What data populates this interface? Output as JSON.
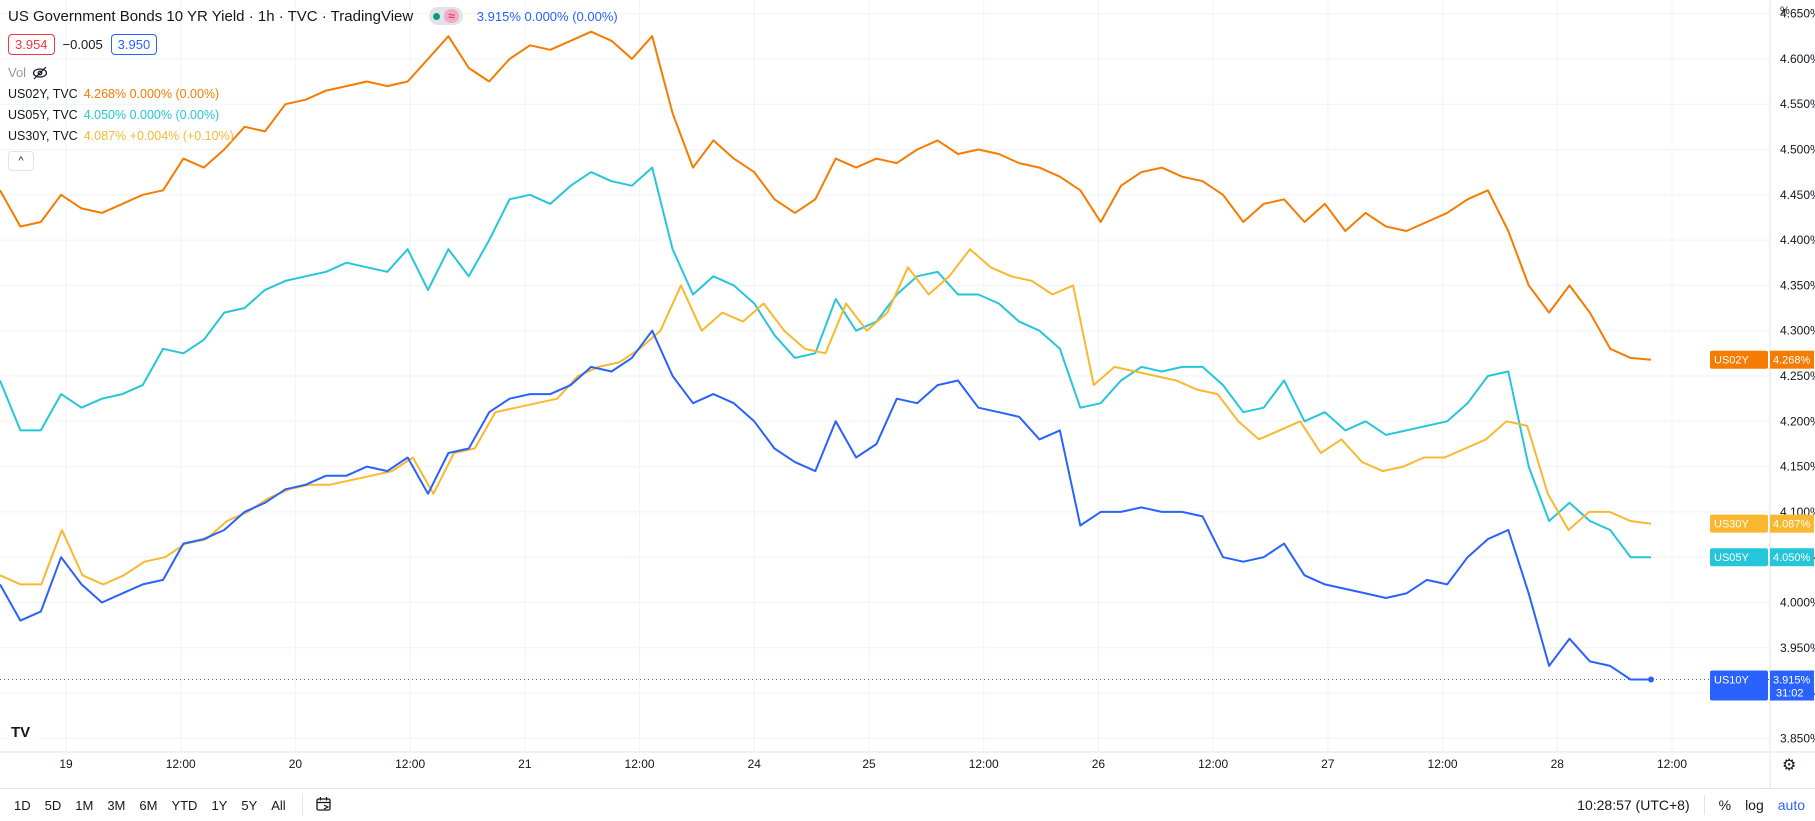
{
  "header": {
    "title": "US Government Bonds 10 YR Yield · 1h · TVC · TradingView",
    "main_quote": "3.915% 0.000% (0.00%)",
    "sell": "3.954",
    "spread": "−0.005",
    "buy": "3.950",
    "vol_label": "Vol"
  },
  "legend_series": [
    {
      "name": "US02Y, TVC",
      "value": "4.268% 0.000% (0.00%)",
      "color": "#f57c00"
    },
    {
      "name": "US05Y, TVC",
      "value": "4.050% 0.000% (0.00%)",
      "color": "#26c6da"
    },
    {
      "name": "US30Y, TVC",
      "value": "4.087% +0.004% (+0.10%)",
      "color": "#f9b82f"
    }
  ],
  "chart_data": {
    "type": "line",
    "yunit": "%",
    "ylim": [
      3.835,
      4.665
    ],
    "y_ticks": [
      "4.650%",
      "4.600%",
      "4.550%",
      "4.500%",
      "4.450%",
      "4.400%",
      "4.350%",
      "4.300%",
      "4.250%",
      "4.200%",
      "4.150%",
      "4.100%",
      "4.050%",
      "4.000%",
      "3.950%",
      "3.900%",
      "3.850%"
    ],
    "x_ticks": [
      "19",
      "12:00",
      "20",
      "12:00",
      "21",
      "12:00",
      "24",
      "25",
      "12:00",
      "26",
      "12:00",
      "27",
      "12:00",
      "28",
      "12:00"
    ],
    "grid": true,
    "series": [
      {
        "name": "US02Y",
        "color": "#f57c00",
        "last": "4.268%",
        "values": [
          4.455,
          4.415,
          4.42,
          4.45,
          4.435,
          4.43,
          4.44,
          4.45,
          4.455,
          4.49,
          4.48,
          4.5,
          4.525,
          4.52,
          4.55,
          4.555,
          4.565,
          4.57,
          4.575,
          4.57,
          4.575,
          4.6,
          4.625,
          4.59,
          4.575,
          4.6,
          4.615,
          4.61,
          4.62,
          4.63,
          4.62,
          4.6,
          4.625,
          4.54,
          4.48,
          4.51,
          4.49,
          4.475,
          4.445,
          4.43,
          4.445,
          4.49,
          4.48,
          4.49,
          4.485,
          4.5,
          4.51,
          4.495,
          4.5,
          4.495,
          4.485,
          4.48,
          4.47,
          4.455,
          4.42,
          4.46,
          4.475,
          4.48,
          4.47,
          4.465,
          4.45,
          4.42,
          4.44,
          4.445,
          4.42,
          4.44,
          4.41,
          4.43,
          4.415,
          4.41,
          4.42,
          4.43,
          4.445,
          4.455,
          4.41,
          4.35,
          4.32,
          4.35,
          4.32,
          4.28,
          4.27,
          4.268
        ]
      },
      {
        "name": "US05Y",
        "color": "#26c6da",
        "last": "4.050%",
        "values": [
          4.245,
          4.19,
          4.19,
          4.23,
          4.215,
          4.225,
          4.23,
          4.24,
          4.28,
          4.275,
          4.29,
          4.32,
          4.325,
          4.345,
          4.355,
          4.36,
          4.365,
          4.375,
          4.37,
          4.365,
          4.39,
          4.345,
          4.39,
          4.36,
          4.4,
          4.445,
          4.45,
          4.44,
          4.46,
          4.475,
          4.465,
          4.46,
          4.48,
          4.39,
          4.34,
          4.36,
          4.35,
          4.33,
          4.295,
          4.27,
          4.275,
          4.335,
          4.3,
          4.31,
          4.34,
          4.36,
          4.365,
          4.34,
          4.34,
          4.33,
          4.31,
          4.3,
          4.28,
          4.215,
          4.22,
          4.245,
          4.26,
          4.255,
          4.26,
          4.26,
          4.24,
          4.21,
          4.215,
          4.245,
          4.2,
          4.21,
          4.19,
          4.2,
          4.185,
          4.19,
          4.195,
          4.2,
          4.22,
          4.25,
          4.255,
          4.15,
          4.09,
          4.11,
          4.09,
          4.08,
          4.05,
          4.05
        ]
      },
      {
        "name": "US30Y",
        "color": "#f9b82f",
        "last": "4.087%",
        "values": [
          4.03,
          4.02,
          4.02,
          4.08,
          4.03,
          4.02,
          4.03,
          4.045,
          4.05,
          4.065,
          4.07,
          4.09,
          4.1,
          4.115,
          4.125,
          4.13,
          4.13,
          4.135,
          4.14,
          4.145,
          4.16,
          4.12,
          4.165,
          4.17,
          4.21,
          4.215,
          4.22,
          4.225,
          4.25,
          4.26,
          4.265,
          4.28,
          4.3,
          4.35,
          4.3,
          4.32,
          4.31,
          4.33,
          4.3,
          4.28,
          4.275,
          4.33,
          4.3,
          4.32,
          4.37,
          4.34,
          4.36,
          4.39,
          4.37,
          4.36,
          4.355,
          4.34,
          4.35,
          4.24,
          4.26,
          4.255,
          4.25,
          4.245,
          4.235,
          4.23,
          4.2,
          4.18,
          4.19,
          4.2,
          4.165,
          4.18,
          4.155,
          4.145,
          4.15,
          4.16,
          4.16,
          4.17,
          4.18,
          4.2,
          4.195,
          4.12,
          4.08,
          4.1,
          4.1,
          4.09,
          4.087
        ]
      },
      {
        "name": "US10Y",
        "color": "#2962ff",
        "last": "3.915%",
        "values": [
          4.02,
          3.98,
          3.99,
          4.05,
          4.02,
          4.0,
          4.01,
          4.02,
          4.025,
          4.065,
          4.07,
          4.08,
          4.1,
          4.11,
          4.125,
          4.13,
          4.14,
          4.14,
          4.15,
          4.145,
          4.16,
          4.12,
          4.165,
          4.17,
          4.21,
          4.225,
          4.23,
          4.23,
          4.24,
          4.26,
          4.255,
          4.27,
          4.3,
          4.25,
          4.22,
          4.23,
          4.22,
          4.2,
          4.17,
          4.155,
          4.145,
          4.2,
          4.16,
          4.175,
          4.225,
          4.22,
          4.24,
          4.245,
          4.215,
          4.21,
          4.205,
          4.18,
          4.19,
          4.085,
          4.1,
          4.1,
          4.105,
          4.1,
          4.1,
          4.095,
          4.05,
          4.045,
          4.05,
          4.065,
          4.03,
          4.02,
          4.015,
          4.01,
          4.005,
          4.01,
          4.025,
          4.02,
          4.05,
          4.07,
          4.08,
          4.01,
          3.93,
          3.96,
          3.935,
          3.93,
          3.915,
          3.915
        ]
      }
    ]
  },
  "time_display": "10:28:57 (UTC+8)",
  "countdown": "31:02",
  "range_buttons": [
    "1D",
    "5D",
    "1M",
    "3M",
    "6M",
    "YTD",
    "1Y",
    "5Y",
    "All"
  ],
  "scale_buttons": {
    "percent": "%",
    "log": "log",
    "auto": "auto"
  }
}
